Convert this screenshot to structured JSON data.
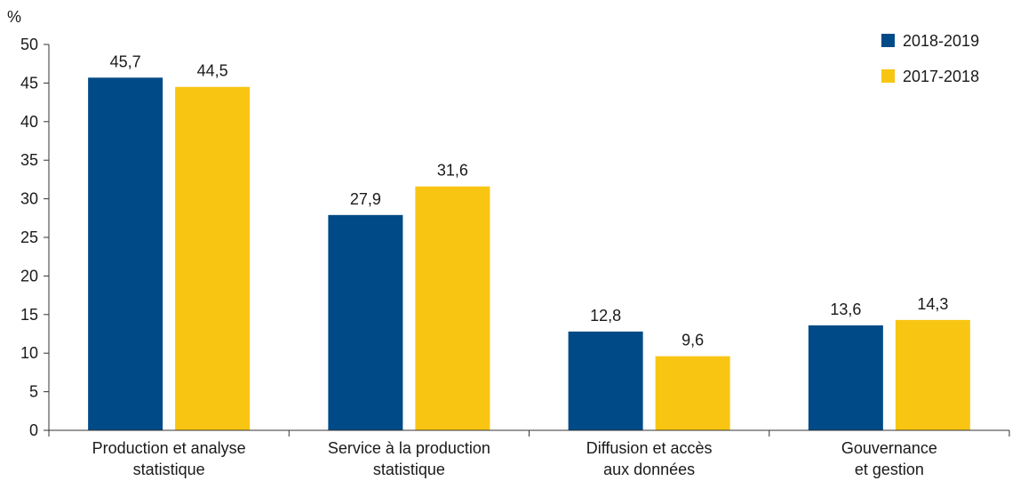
{
  "chart_data": {
    "type": "bar",
    "unit_label": "%",
    "categories": [
      [
        "Production et analyse",
        "statistique"
      ],
      [
        "Service à la production",
        "statistique"
      ],
      [
        "Diffusion et accès",
        "aux données"
      ],
      [
        "Gouvernance",
        "et gestion"
      ]
    ],
    "series": [
      {
        "name": "2018-2019",
        "color": "#004a87",
        "values": [
          45.7,
          27.9,
          12.8,
          13.6
        ],
        "labels": [
          "45,7",
          "27,9",
          "12,8",
          "13,6"
        ]
      },
      {
        "name": "2017-2018",
        "color": "#f8c512",
        "values": [
          44.5,
          31.6,
          9.6,
          14.3
        ],
        "labels": [
          "44,5",
          "31,6",
          "9,6",
          "14,3"
        ]
      }
    ],
    "ylim": [
      0,
      50
    ],
    "yticks": [
      0,
      5,
      10,
      15,
      20,
      25,
      30,
      35,
      40,
      45,
      50
    ],
    "grid": false,
    "legend_position": "top-right"
  }
}
